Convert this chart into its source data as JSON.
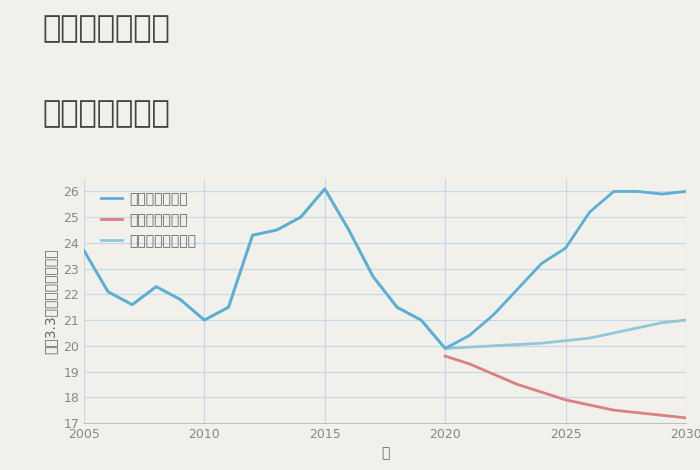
{
  "title_line1": "奈良県天理市の",
  "title_line2": "土地の価格推移",
  "xlabel": "年",
  "ylabel": "坪（3.3㎡）単価（万円）",
  "background_color": "#f2f0eb",
  "plot_background_color": "#f2f0eb",
  "grid_color": "#c5d8e8",
  "xlim": [
    2005,
    2030
  ],
  "ylim": [
    17,
    26.5
  ],
  "yticks": [
    17,
    18,
    19,
    20,
    21,
    22,
    23,
    24,
    25,
    26
  ],
  "xticks": [
    2005,
    2010,
    2015,
    2020,
    2025,
    2030
  ],
  "good_scenario": {
    "label": "グッドシナリオ",
    "color": "#5bafd6",
    "years": [
      2005,
      2006,
      2007,
      2008,
      2009,
      2010,
      2011,
      2012,
      2013,
      2014,
      2015,
      2016,
      2017,
      2018,
      2019,
      2020,
      2021,
      2022,
      2023,
      2024,
      2025,
      2026,
      2027,
      2028,
      2029,
      2030
    ],
    "values": [
      23.7,
      22.1,
      21.6,
      22.3,
      21.8,
      21.0,
      21.5,
      24.3,
      24.5,
      25.0,
      26.1,
      24.5,
      22.7,
      21.5,
      21.0,
      19.9,
      20.4,
      21.2,
      22.2,
      23.2,
      23.8,
      25.2,
      26.0,
      26.0,
      25.9,
      26.0
    ]
  },
  "bad_scenario": {
    "label": "バッドシナリオ",
    "color": "#d98080",
    "years": [
      2020,
      2021,
      2022,
      2023,
      2024,
      2025,
      2026,
      2027,
      2028,
      2029,
      2030
    ],
    "values": [
      19.6,
      19.3,
      18.9,
      18.5,
      18.2,
      17.9,
      17.7,
      17.5,
      17.4,
      17.3,
      17.2
    ]
  },
  "normal_scenario": {
    "label": "ノーマルシナリオ",
    "color": "#90c8d8",
    "years": [
      2005,
      2006,
      2007,
      2008,
      2009,
      2010,
      2011,
      2012,
      2013,
      2014,
      2015,
      2016,
      2017,
      2018,
      2019,
      2020,
      2021,
      2022,
      2023,
      2024,
      2025,
      2026,
      2027,
      2028,
      2029,
      2030
    ],
    "values": [
      23.7,
      22.1,
      21.6,
      22.3,
      21.8,
      21.0,
      21.5,
      24.3,
      24.5,
      25.0,
      26.1,
      24.5,
      22.7,
      21.5,
      21.0,
      19.9,
      19.95,
      20.0,
      20.05,
      20.1,
      20.2,
      20.3,
      20.5,
      20.7,
      20.9,
      21.0
    ]
  },
  "title_fontsize": 22,
  "legend_fontsize": 10,
  "axis_fontsize": 10,
  "tick_fontsize": 9,
  "line_width": 2.0,
  "title_color": "#444444",
  "tick_color": "#888888",
  "label_color": "#666666"
}
